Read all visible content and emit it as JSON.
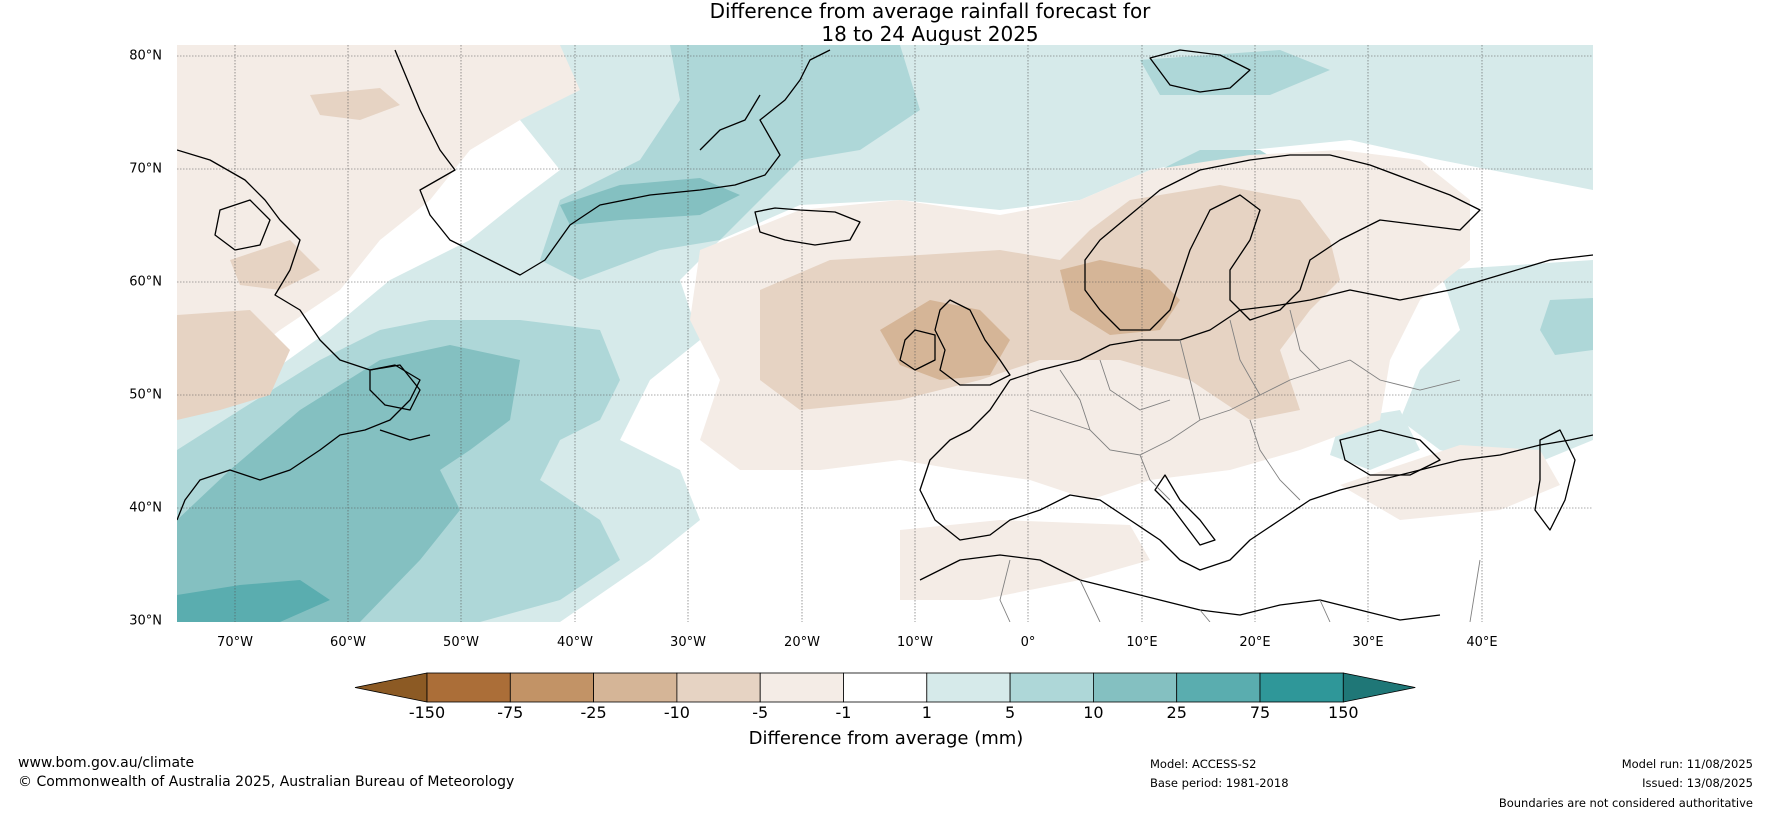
{
  "title": {
    "line1": "Difference from average rainfall forecast for",
    "line2": "18 to 24 August 2025"
  },
  "map": {
    "lat_labels": [
      "80°N",
      "70°N",
      "60°N",
      "50°N",
      "40°N",
      "30°N"
    ],
    "lon_labels": [
      "70°W",
      "60°W",
      "50°W",
      "40°W",
      "30°W",
      "20°W",
      "10°W",
      "0°",
      "10°E",
      "20°E",
      "30°E",
      "40°E"
    ],
    "colors": {
      "ocean_background": "#ffffff",
      "coastline": "#000000",
      "country_borders": "#808080",
      "gridlines": "#555555"
    }
  },
  "colorbar": {
    "title": "Difference from average (mm)",
    "ticks": [
      "-150",
      "-75",
      "-25",
      "-10",
      "-5",
      "-1",
      "1",
      "5",
      "10",
      "25",
      "75",
      "150"
    ],
    "colors": [
      "#8c5a24",
      "#ab6e38",
      "#c29366",
      "#d5b597",
      "#e6d3c3",
      "#f4ece6",
      "#ffffff",
      "#d6eaea",
      "#aed7d8",
      "#84c0c1",
      "#5aadaf",
      "#2f9799",
      "#1f7777"
    ]
  },
  "footer": {
    "website": "www.bom.gov.au/climate",
    "copyright": "© Commonwealth of Australia 2025, Australian Bureau of Meteorology",
    "model": "Model: ACCESS-S2",
    "base_period": "Base period: 1981-2018",
    "model_run": "Model run: 11/08/2025",
    "issued": "Issued: 13/08/2025",
    "disclaimer": "Boundaries are not considered authoritative"
  }
}
